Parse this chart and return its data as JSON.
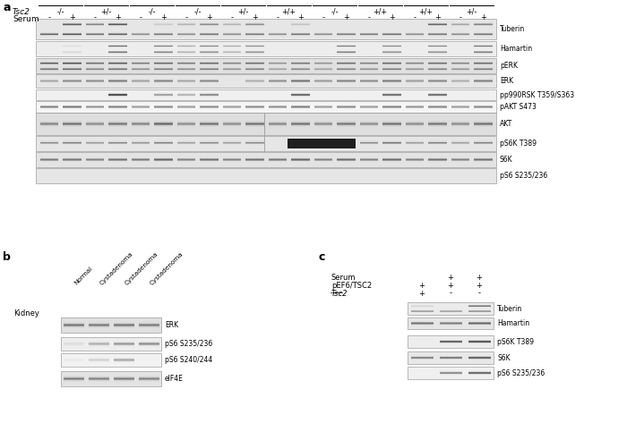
{
  "panel_a": {
    "tsc2_labels": [
      "-/-",
      "+/-",
      "-/-",
      "-/-",
      "+/-",
      "+/+",
      "-/-",
      "+/+",
      "+/+",
      "+/-"
    ],
    "serum_pat": [
      "-",
      "+",
      "-",
      "+",
      "-",
      "+",
      "-",
      "+",
      "-",
      "+",
      "-",
      "+",
      "-",
      "+",
      "-",
      "+",
      "-",
      "+",
      "-",
      "+"
    ],
    "blot_labels": [
      "Tuberin",
      "Hamartin",
      "pERK",
      "ERK",
      "pp990RSK T359/S363",
      "pAKT S473",
      "AKT",
      "pS6K T389",
      "S6K",
      "pS6 S235/236"
    ],
    "num_lanes": 20
  },
  "panel_b": {
    "kidney_label": "Kidney",
    "col_labels": [
      "Normal",
      "Cystadenoma",
      "Cystadenoma",
      "Cystadenoma"
    ],
    "blot_labels": [
      "ERK",
      "pS6 S235/236",
      "pS6 S240/244",
      "eIF4E"
    ]
  },
  "panel_c": {
    "row1_label": "Serum",
    "row2_label": "pEF6/TSC2",
    "row3_label": "Tsc2",
    "row1_vals": [
      "",
      "+",
      "+"
    ],
    "row2_vals": [
      "+",
      "+",
      "+"
    ],
    "row3_vals": [
      "+",
      "-",
      "-"
    ],
    "blot_labels": [
      "Tuberin",
      "Hamartin",
      "pS6K T389",
      "S6K",
      "pS6 S235/236"
    ]
  }
}
